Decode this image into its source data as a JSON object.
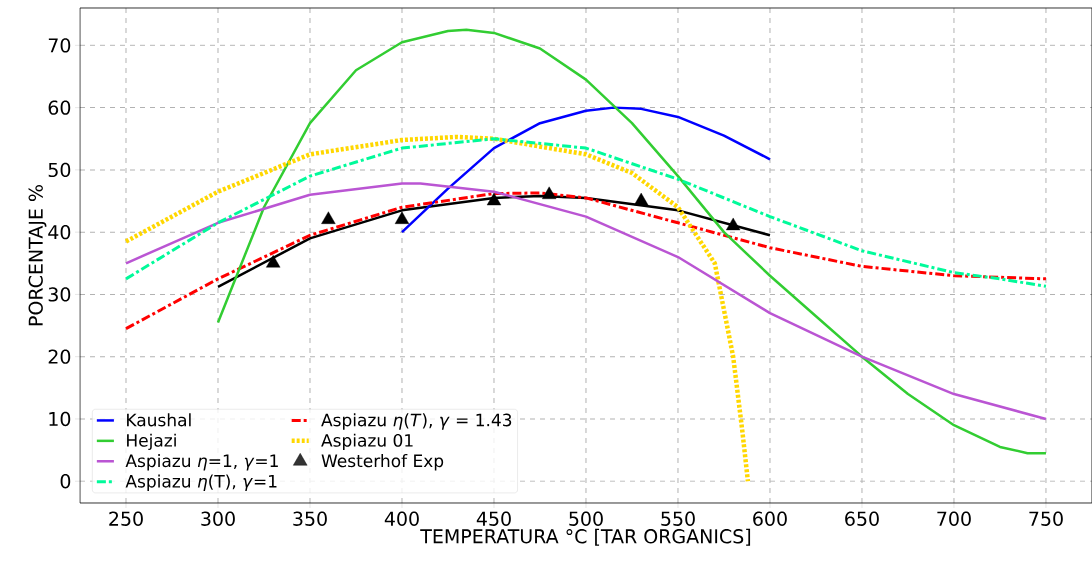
{
  "chart_data": {
    "type": "line",
    "xlabel": "TEMPERATURA °C [TAR ORGANICS]",
    "ylabel": "PORCENTAJE %",
    "xlim": [
      225,
      775
    ],
    "ylim": [
      -3.5,
      76
    ],
    "xticks": [
      250,
      300,
      350,
      400,
      450,
      500,
      550,
      600,
      650,
      700,
      750
    ],
    "yticks": [
      0,
      10,
      20,
      30,
      40,
      50,
      60,
      70
    ],
    "grid": true,
    "legend": "bottom left",
    "series": [
      {
        "name": "Kaushal",
        "color": "#0000ff",
        "line_style": "solid",
        "marker": "none",
        "x": [
          400,
          425,
          450,
          475,
          500,
          515,
          530,
          550,
          575,
          600
        ],
        "values": [
          40,
          47,
          53.5,
          57.5,
          59.5,
          60,
          59.8,
          58.5,
          55.5,
          51.7
        ]
      },
      {
        "name": "Hejazi",
        "color": "#32cd32",
        "line_style": "solid",
        "marker": "none",
        "x": [
          300,
          325,
          350,
          375,
          400,
          425,
          435,
          450,
          475,
          500,
          525,
          550,
          575,
          600,
          625,
          650,
          675,
          700,
          725,
          740,
          750
        ],
        "values": [
          25.5,
          44,
          57.5,
          66,
          70.5,
          72.3,
          72.5,
          72,
          69.5,
          64.5,
          57.5,
          49,
          40,
          33,
          26.5,
          20,
          14,
          9,
          5.5,
          4.5,
          4.5
        ]
      },
      {
        "name": "Aspiazu *η*=1, *γ*=1",
        "color": "#ba55d3",
        "line_style": "solid",
        "marker": "none",
        "x": [
          250,
          300,
          350,
          400,
          410,
          450,
          500,
          550,
          600,
          650,
          700,
          750
        ],
        "values": [
          35,
          41.5,
          46,
          47.8,
          47.8,
          46.5,
          42.5,
          36,
          27,
          20,
          14,
          10
        ]
      },
      {
        "name": "Aspiazu *η*(T), *γ*=1",
        "color": "#00fa9a",
        "line_style": "dashdot",
        "marker": "none",
        "x": [
          250,
          300,
          350,
          400,
          450,
          500,
          550,
          600,
          650,
          700,
          725,
          750
        ],
        "values": [
          32.5,
          41.5,
          49,
          53.5,
          55,
          53.5,
          48.5,
          42.5,
          37,
          33.5,
          32.5,
          31.3
        ]
      },
      {
        "name": "Aspiazu *η*(*T*), *γ* = 1.43",
        "color": "#ff0000",
        "line_style": "dashdot",
        "marker": "none",
        "x": [
          250,
          300,
          350,
          400,
          450,
          475,
          500,
          550,
          600,
          650,
          700,
          750
        ],
        "values": [
          24.5,
          32.5,
          39.5,
          44,
          46.2,
          46.3,
          45.5,
          41.5,
          37.5,
          34.5,
          33,
          32.5
        ]
      },
      {
        "name": "Aspiazu 01",
        "color": "#ffd700",
        "line_style": "dotted",
        "marker": "none",
        "x": [
          250,
          300,
          350,
          400,
          430,
          450,
          500,
          525,
          550,
          570,
          580,
          585,
          588
        ],
        "values": [
          38.5,
          46.5,
          52.5,
          54.8,
          55.3,
          55,
          52.5,
          49.5,
          44,
          35,
          20,
          8,
          0
        ]
      },
      {
        "name": "Westerhof Exp",
        "type": "scatter",
        "color": "#000000",
        "marker": "triangle",
        "x": [
          330,
          360,
          400,
          450,
          480,
          530,
          580
        ],
        "values": [
          35,
          42,
          42,
          45,
          46,
          45,
          41
        ]
      },
      {
        "color": "#000000",
        "line_style": "solid",
        "marker": "none",
        "x": [
          300,
          350,
          400,
          450,
          475,
          500,
          550,
          600
        ],
        "values": [
          31.2,
          39,
          43.5,
          45.5,
          45.8,
          45.5,
          43.5,
          39.5
        ]
      }
    ]
  }
}
